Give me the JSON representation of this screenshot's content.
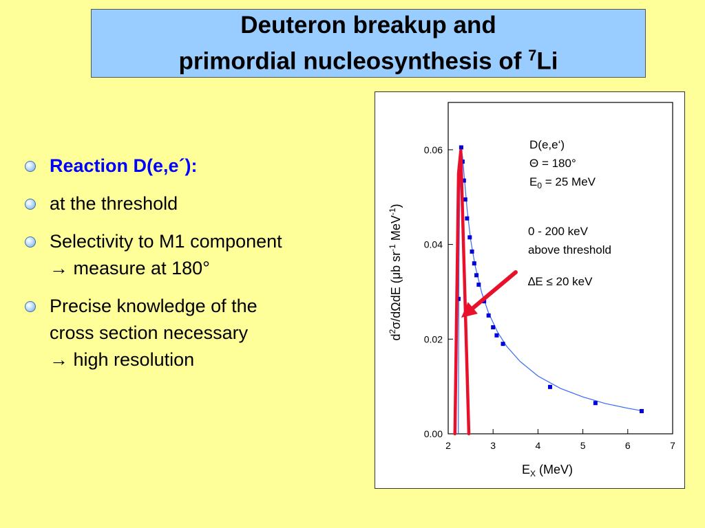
{
  "title": {
    "line1": "Deuteron breakup and",
    "line2": "primordial nucleosynthesis of ",
    "superscript": "7",
    "line2_tail": "Li"
  },
  "bullets": [
    {
      "lines": [
        "Reaction D(e,e´):"
      ],
      "highlight": true
    },
    {
      "lines": [
        "at the threshold"
      ],
      "highlight": false
    },
    {
      "lines": [
        "Selectivity to M1 component",
        "→ measure at 180°"
      ],
      "highlight": false
    },
    {
      "lines": [
        "Precise knowledge of the",
        "cross section necessary",
        "→ high resolution"
      ],
      "highlight": false
    }
  ],
  "colors": {
    "background": "#ffff99",
    "title_box": "#99ccff",
    "highlight_text": "#0000ff",
    "data_points": "#0000dd",
    "fit_curve": "#3366ff",
    "arrow": "#e8102a"
  },
  "chart_data": {
    "type": "scatter",
    "title": "",
    "xlabel_main": "E",
    "xlabel_sub": "X",
    "xlabel_tail": " (MeV)",
    "ylabel_parts": [
      "d",
      "2",
      "σ/dΩdE (μb sr",
      "-1",
      " MeV",
      "-1",
      ")"
    ],
    "xlim": [
      2,
      7
    ],
    "ylim": [
      0,
      0.07
    ],
    "xticks": [
      2,
      3,
      4,
      5,
      6,
      7
    ],
    "yticks": [
      0.0,
      0.02,
      0.04,
      0.06
    ],
    "ytick_labels": [
      "0.00",
      "0.02",
      "0.04",
      "0.06"
    ],
    "grid": false,
    "series": [
      {
        "marker": "square",
        "points": [
          [
            2.23,
            0.0285
          ],
          [
            2.26,
            0.055
          ],
          [
            2.29,
            0.0605
          ],
          [
            2.32,
            0.0575
          ],
          [
            2.35,
            0.0535
          ],
          [
            2.38,
            0.0495
          ],
          [
            2.42,
            0.0455
          ],
          [
            2.48,
            0.0415
          ],
          [
            2.53,
            0.0385
          ],
          [
            2.58,
            0.036
          ],
          [
            2.63,
            0.0335
          ],
          [
            2.68,
            0.0315
          ],
          [
            2.8,
            0.028
          ],
          [
            2.9,
            0.025
          ],
          [
            3.0,
            0.0225
          ],
          [
            3.08,
            0.0208
          ],
          [
            3.22,
            0.019
          ],
          [
            4.27,
            0.0099
          ],
          [
            5.28,
            0.0065
          ],
          [
            6.31,
            0.0048
          ]
        ]
      }
    ],
    "fit_curve": [
      [
        2.225,
        0.0
      ],
      [
        2.232,
        0.018
      ],
      [
        2.24,
        0.035
      ],
      [
        2.255,
        0.05
      ],
      [
        2.27,
        0.0575
      ],
      [
        2.29,
        0.0603
      ],
      [
        2.32,
        0.0585
      ],
      [
        2.36,
        0.054
      ],
      [
        2.42,
        0.0475
      ],
      [
        2.5,
        0.041
      ],
      [
        2.6,
        0.0355
      ],
      [
        2.75,
        0.0297
      ],
      [
        2.9,
        0.0255
      ],
      [
        3.1,
        0.0215
      ],
      [
        3.3,
        0.0185
      ],
      [
        3.6,
        0.0153
      ],
      [
        4.0,
        0.0122
      ],
      [
        4.5,
        0.0096
      ],
      [
        5.0,
        0.0078
      ],
      [
        5.5,
        0.0064
      ],
      [
        6.0,
        0.0054
      ],
      [
        6.3,
        0.0049
      ]
    ],
    "arrow_path": [
      [
        2.15,
        0.0
      ],
      [
        2.23,
        0.055
      ],
      [
        2.28,
        0.0598
      ],
      [
        2.46,
        0.0
      ]
    ],
    "annotations": {
      "reaction": "D(e,e‘)",
      "angle": "Θ = 180°",
      "energy_main": "E",
      "energy_sub": "0",
      "energy_tail": " = 25 MeV",
      "window1": "0 - 200 keV",
      "window2": "above threshold",
      "resolution": "∆E ≤ 20 keV"
    }
  }
}
